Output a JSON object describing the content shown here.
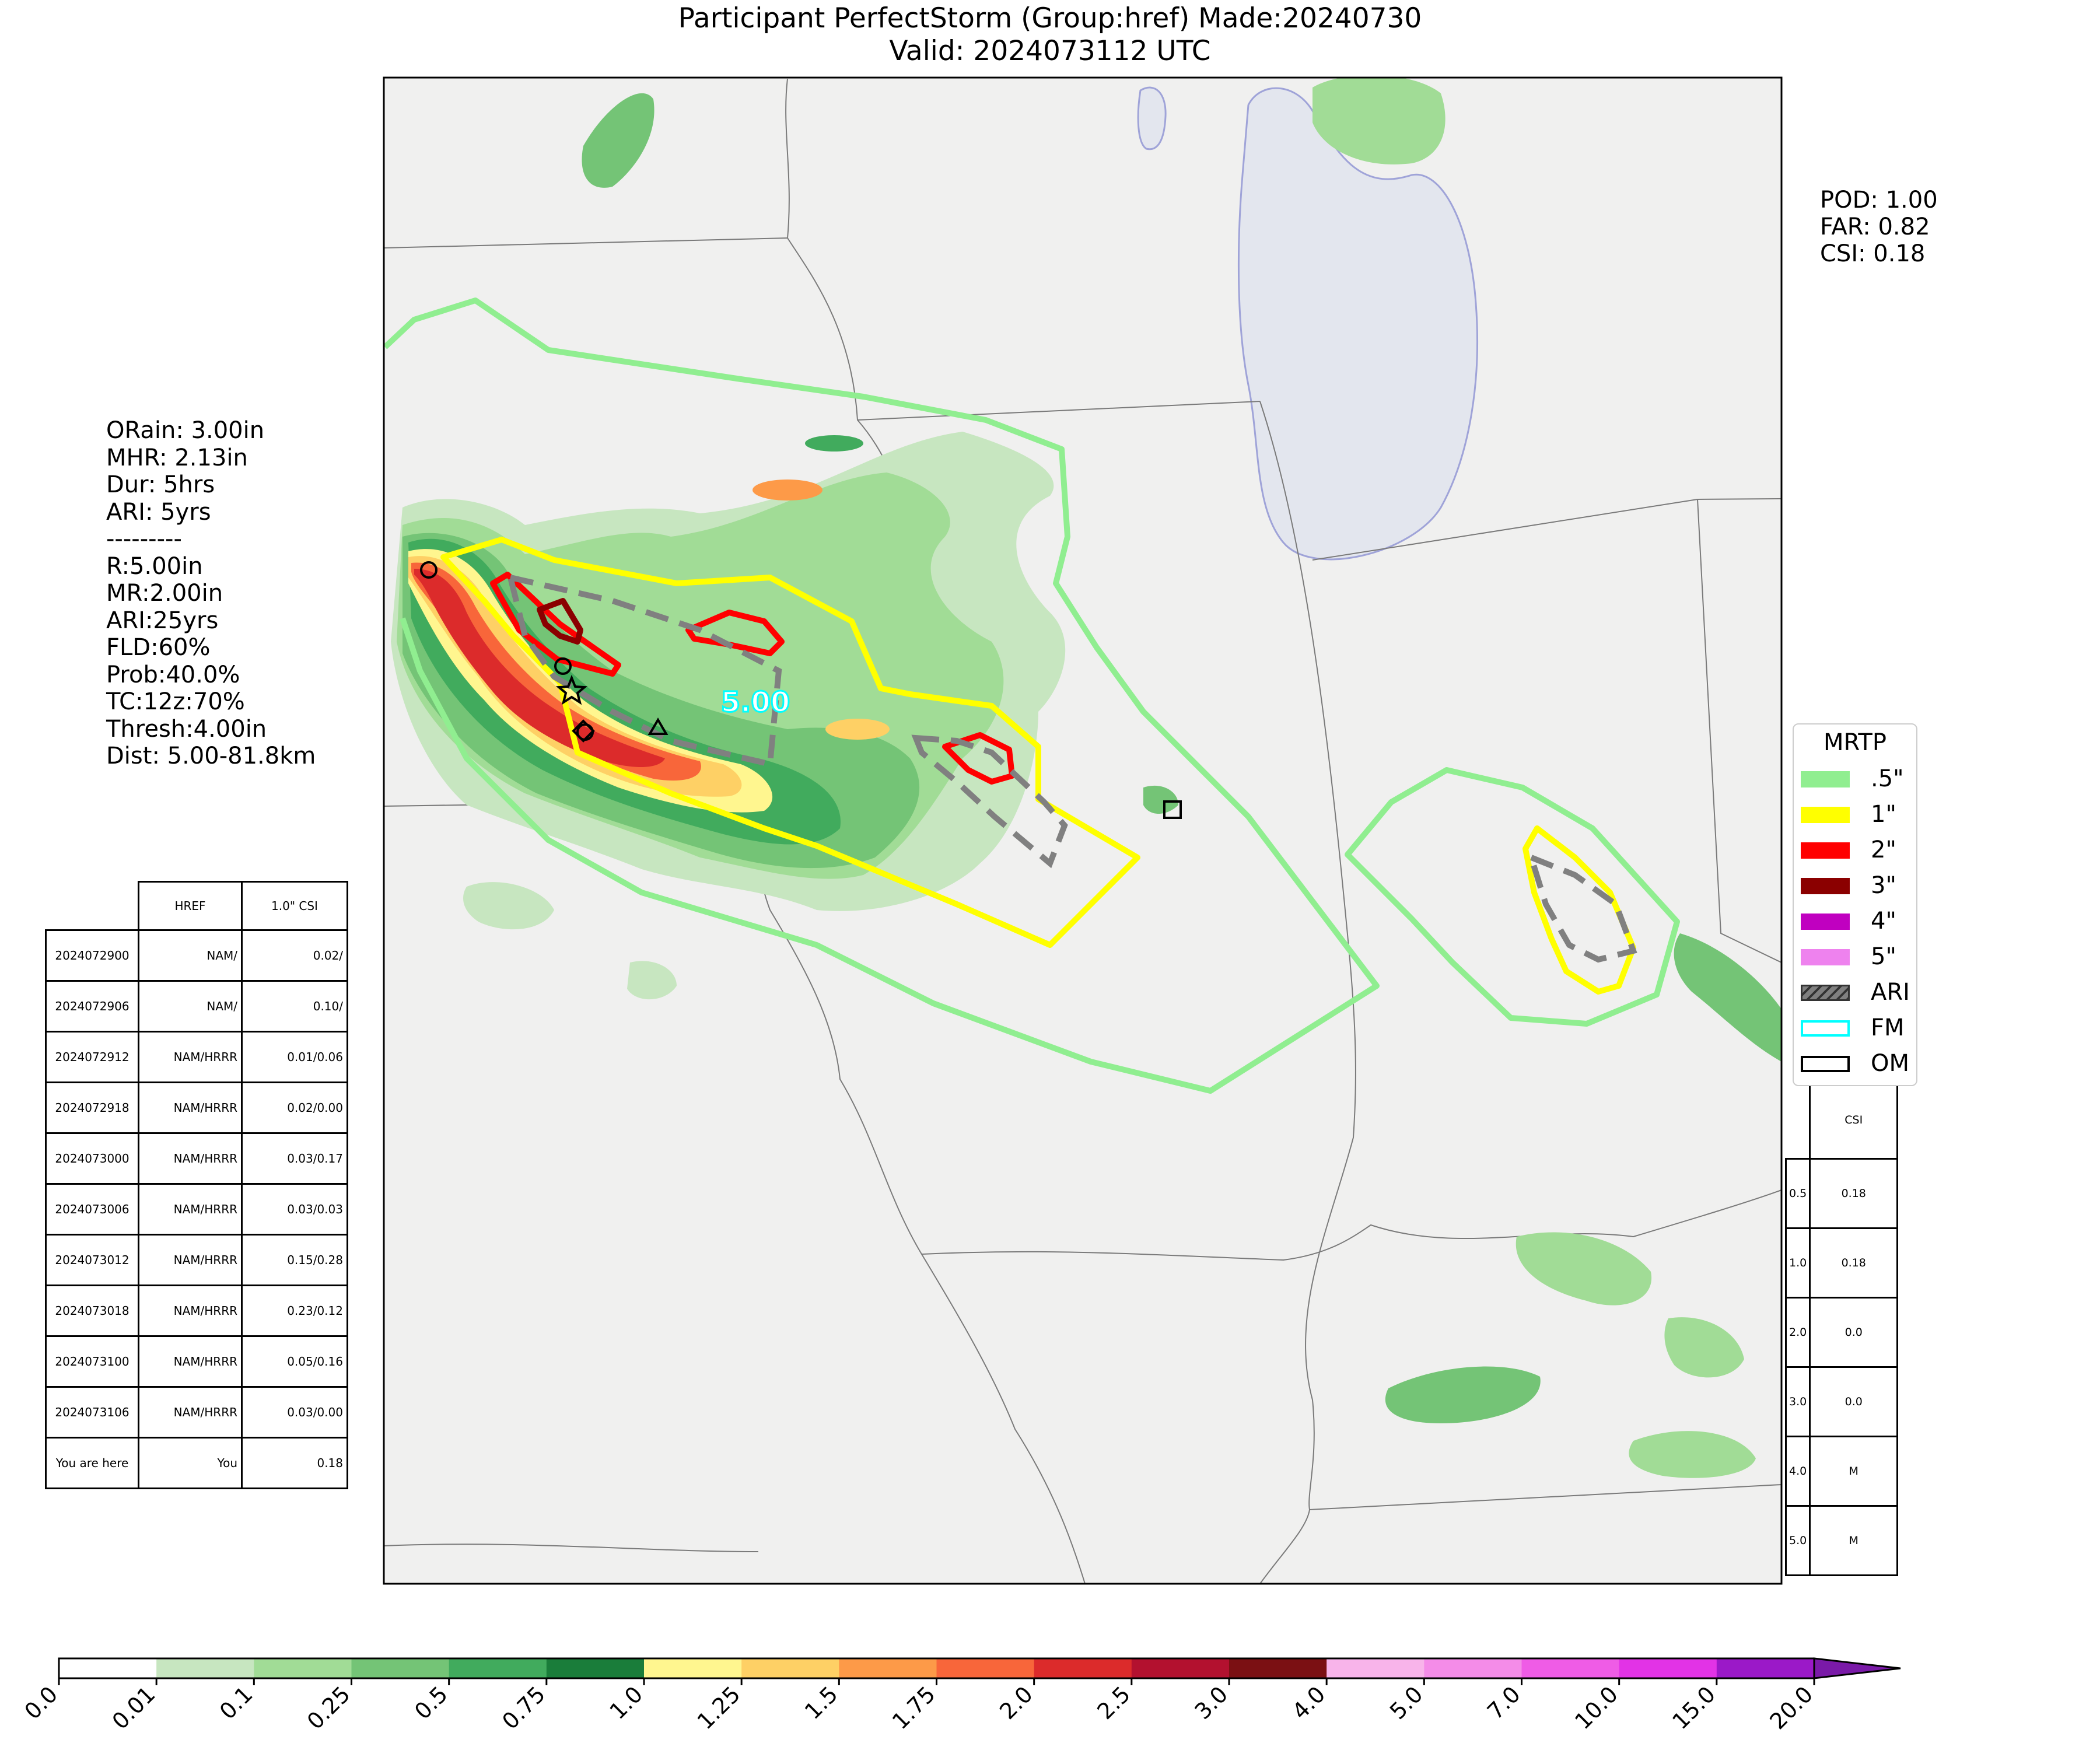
{
  "title": {
    "line1": "Participant PerfectStorm (Group:href) Made:20240730",
    "line2": "Valid: 2024073112 UTC"
  },
  "verification": [
    "POD: 1.00",
    "FAR: 0.82",
    "CSI: 0.18"
  ],
  "parameters": [
    "ORain: 3.00in",
    "MHR: 2.13in",
    "Dur: 5hrs",
    "ARI: 5yrs",
    "---------",
    "R:5.00in",
    "MR:2.00in",
    "ARI:25yrs",
    "FLD:60%",
    "Prob:40.0%",
    "TC:12z:70%",
    "Thresh:4.00in",
    "",
    "Dist: 5.00-81.8km"
  ],
  "runs_table": {
    "headers": [
      "",
      "HREF",
      "1.0\" CSI"
    ],
    "rows": [
      [
        "2024072900",
        "NAM/",
        "0.02/"
      ],
      [
        "2024072906",
        "NAM/",
        "0.10/"
      ],
      [
        "2024072912",
        "NAM/HRRR",
        "0.01/0.06"
      ],
      [
        "2024072918",
        "NAM/HRRR",
        "0.02/0.00"
      ],
      [
        "2024073000",
        "NAM/HRRR",
        "0.03/0.17"
      ],
      [
        "2024073006",
        "NAM/HRRR",
        "0.03/0.03"
      ],
      [
        "2024073012",
        "NAM/HRRR",
        "0.15/0.28"
      ],
      [
        "2024073018",
        "NAM/HRRR",
        "0.23/0.12"
      ],
      [
        "2024073100",
        "NAM/HRRR",
        "0.05/0.16"
      ],
      [
        "2024073106",
        "NAM/HRRR",
        "0.03/0.00"
      ],
      [
        "You are here",
        "You",
        "0.18"
      ]
    ]
  },
  "csi_table": {
    "header": "CSI",
    "rows": [
      [
        "0.5",
        "0.18"
      ],
      [
        "1.0",
        "0.18"
      ],
      [
        "2.0",
        "0.0"
      ],
      [
        "3.0",
        "0.0"
      ],
      [
        "4.0",
        "M"
      ],
      [
        "5.0",
        "M"
      ]
    ]
  },
  "legend": {
    "title": "MRTP",
    "items": [
      {
        "label": ".5\"",
        "color": "#90ee90",
        "style": "fill"
      },
      {
        "label": "1\"",
        "color": "#ffff00",
        "style": "fill"
      },
      {
        "label": "2\"",
        "color": "#ff0000",
        "style": "fill"
      },
      {
        "label": "3\"",
        "color": "#8b0000",
        "style": "fill"
      },
      {
        "label": "4\"",
        "color": "#c000c0",
        "style": "fill"
      },
      {
        "label": "5\"",
        "color": "#ee82ee",
        "style": "fill"
      },
      {
        "label": "ARI",
        "color": "#808080",
        "style": "hatch"
      },
      {
        "label": "FM",
        "color": "#00ffff",
        "style": "outline"
      },
      {
        "label": "OM",
        "color": "#000000",
        "style": "outline"
      }
    ]
  },
  "map_annotation": "5.00",
  "colorbar": {
    "ticks": [
      "0.0",
      "0.01",
      "0.1",
      "0.25",
      "0.5",
      "0.75",
      "1.0",
      "1.25",
      "1.5",
      "1.75",
      "2.0",
      "2.5",
      "3.0",
      "4.0",
      "5.0",
      "7.0",
      "10.0",
      "15.0",
      "20.0"
    ],
    "colors": [
      "#ffffff",
      "#c7e6c0",
      "#a1dc96",
      "#74c476",
      "#41ab5d",
      "#1a7d3a",
      "#fff68f",
      "#fed065",
      "#fd9a48",
      "#f8663a",
      "#dc2b2b",
      "#b3112f",
      "#7b1013",
      "#f8b4ea",
      "#f48ce8",
      "#ef5ce6",
      "#e233e6",
      "#9b19c8"
    ]
  }
}
